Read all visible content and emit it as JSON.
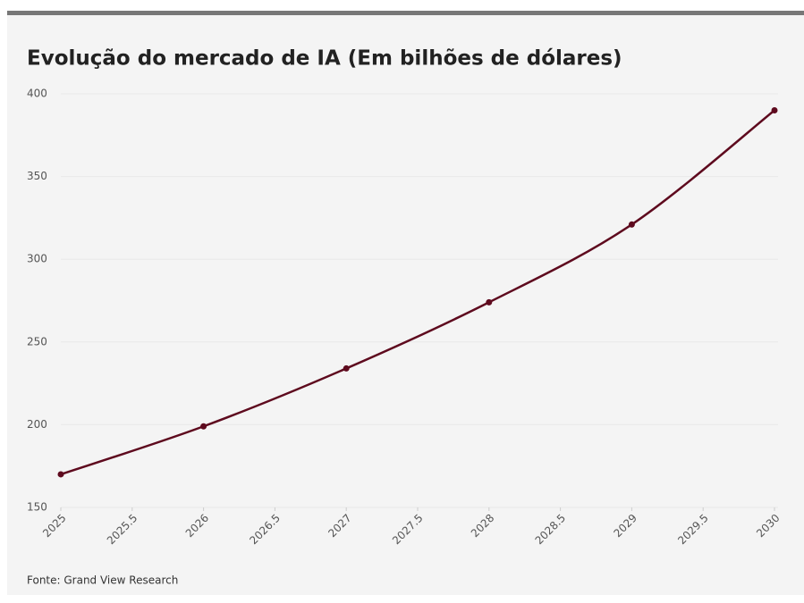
{
  "chart_data": {
    "type": "line",
    "title": "Evolução do mercado de IA (Em bilhões de dólares)",
    "source": "Fonte: Grand View Research",
    "x": [
      2025,
      2026,
      2027,
      2028,
      2029,
      2030
    ],
    "values": [
      170,
      199,
      234,
      274,
      321,
      390
    ],
    "color": "#5e0a1e",
    "xlim": [
      2025,
      2030
    ],
    "xticks": [
      2025,
      2025.5,
      2026,
      2026.5,
      2027,
      2027.5,
      2028,
      2028.5,
      2029,
      2029.5,
      2030
    ],
    "ylim": [
      150,
      400
    ],
    "yticks": [
      150,
      200,
      250,
      300,
      350,
      400
    ],
    "grid": true
  }
}
